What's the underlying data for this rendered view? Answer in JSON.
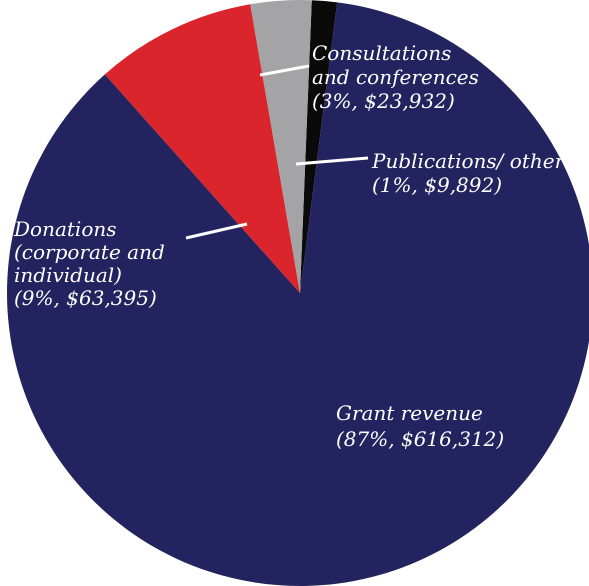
{
  "chart_data": {
    "type": "pie",
    "slices": [
      {
        "id": "publications",
        "label_lines": [
          "Publications/ other",
          "(1%, $9,892)"
        ],
        "percent": 1,
        "amount": 9892,
        "color": "#0a0a0a"
      },
      {
        "id": "grant",
        "label_lines": [
          "Grant revenue",
          "(87%, $616,312)"
        ],
        "percent": 87,
        "amount": 616312,
        "color": "#23235f"
      },
      {
        "id": "donations",
        "label_lines": [
          "Donations",
          "(corporate and",
          "individual)",
          "(9%, $63,395)"
        ],
        "percent": 9,
        "amount": 63395,
        "color": "#d9252b"
      },
      {
        "id": "consultations",
        "label_lines": [
          "Consultations",
          "and conferences",
          "(3%, $23,932)"
        ],
        "percent": 3,
        "amount": 23932,
        "color": "#a4a4a6"
      }
    ],
    "start": "top (12 o'clock), clockwise",
    "legend": "none"
  }
}
